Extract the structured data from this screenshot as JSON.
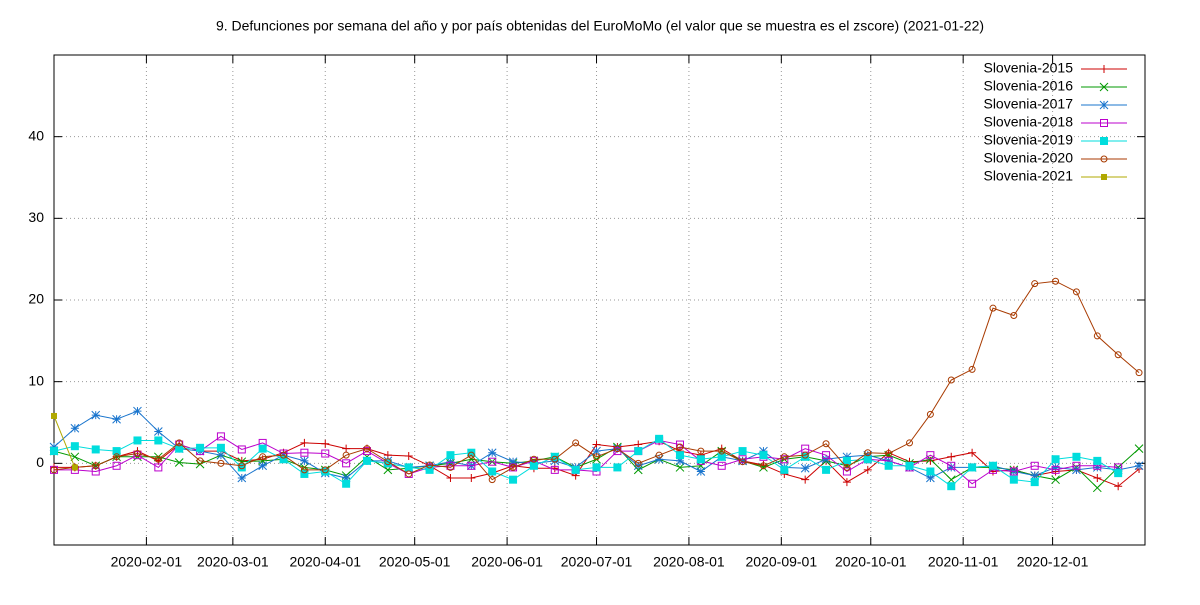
{
  "chart_data": {
    "type": "line",
    "title": "9. Defunciones por semana del año y por país obtenidas del EuroMoMo (el valor que se muestra es el zscore) (2021-01-22)",
    "x": [
      "2020-01-01",
      "2020-01-08",
      "2020-01-15",
      "2020-01-22",
      "2020-01-29",
      "2020-02-05",
      "2020-02-12",
      "2020-02-19",
      "2020-02-26",
      "2020-03-04",
      "2020-03-11",
      "2020-03-18",
      "2020-03-25",
      "2020-04-01",
      "2020-04-08",
      "2020-04-15",
      "2020-04-22",
      "2020-04-29",
      "2020-05-06",
      "2020-05-13",
      "2020-05-20",
      "2020-05-27",
      "2020-06-03",
      "2020-06-10",
      "2020-06-17",
      "2020-06-24",
      "2020-07-01",
      "2020-07-08",
      "2020-07-15",
      "2020-07-22",
      "2020-07-29",
      "2020-08-05",
      "2020-08-12",
      "2020-08-19",
      "2020-08-26",
      "2020-09-02",
      "2020-09-09",
      "2020-09-16",
      "2020-09-23",
      "2020-09-30",
      "2020-10-07",
      "2020-10-14",
      "2020-10-21",
      "2020-10-28",
      "2020-11-04",
      "2020-11-11",
      "2020-11-18",
      "2020-11-25",
      "2020-12-02",
      "2020-12-09",
      "2020-12-16",
      "2020-12-23",
      "2020-12-30"
    ],
    "xlim": [
      "2020-01-01",
      "2021-01-01"
    ],
    "xticks": [
      "2020-02-01",
      "2020-03-01",
      "2020-04-01",
      "2020-05-01",
      "2020-06-01",
      "2020-07-01",
      "2020-08-01",
      "2020-09-01",
      "2020-10-01",
      "2020-11-01",
      "2020-12-01"
    ],
    "ylim": [
      -10,
      50
    ],
    "yticks": [
      0,
      10,
      20,
      30,
      40
    ],
    "grid": true,
    "legend": "top-right",
    "series": [
      {
        "name": "Slovenia-2015",
        "color": "#cc0000",
        "marker": "plus",
        "values": [
          -0.5,
          -0.5,
          -0.3,
          0.8,
          1.5,
          0.3,
          2.3,
          1.5,
          1.5,
          0.3,
          0.5,
          1.3,
          2.5,
          2.4,
          1.8,
          1.8,
          1.0,
          0.9,
          -0.3,
          -1.8,
          -1.8,
          -1.2,
          -0.3,
          -0.6,
          -0.6,
          -1.5,
          2.3,
          2.0,
          2.3,
          2.7,
          1.5,
          1.0,
          1.8,
          0.3,
          -0.2,
          -1.3,
          -2.0,
          0.3,
          -2.3,
          -0.8,
          1.3,
          0.2,
          0.3,
          0.8,
          1.3,
          -1.0,
          -0.8,
          -1.5,
          -1.0,
          -0.8,
          -1.8,
          -2.8,
          -0.7
        ]
      },
      {
        "name": "Slovenia-2016",
        "color": "#009900",
        "marker": "cross",
        "values": [
          1.5,
          0.8,
          -0.3,
          0.8,
          0.8,
          0.8,
          0.1,
          -0.1,
          1.0,
          0.2,
          0.3,
          0.5,
          -0.5,
          -0.8,
          -1.5,
          0.8,
          -0.8,
          -0.6,
          -0.3,
          0.0,
          0.5,
          0.2,
          0.0,
          0.3,
          0.8,
          -0.5,
          0.5,
          2.0,
          -0.8,
          0.5,
          -0.5,
          -0.3,
          1.5,
          0.3,
          -0.5,
          0.5,
          0.8,
          0.3,
          -0.3,
          0.8,
          1.0,
          0.0,
          0.5,
          -2.0,
          -0.5,
          -0.5,
          -0.8,
          -1.5,
          -2.0,
          -0.5,
          -3.0,
          -0.5,
          1.8
        ]
      },
      {
        "name": "Slovenia-2017",
        "color": "#1874cd",
        "marker": "star",
        "values": [
          2.0,
          4.3,
          5.9,
          5.4,
          6.4,
          3.9,
          1.8,
          1.5,
          1.0,
          -1.8,
          -0.3,
          1.0,
          0.3,
          -1.2,
          -1.8,
          0.3,
          0.3,
          -0.5,
          -0.3,
          0.2,
          -0.3,
          1.3,
          0.2,
          0.0,
          0.3,
          -0.5,
          1.5,
          1.8,
          -0.3,
          0.5,
          0.3,
          -1.0,
          0.8,
          0.3,
          1.5,
          -0.5,
          -0.6,
          0.5,
          0.8,
          1.0,
          0.3,
          -0.5,
          -1.8,
          -0.5,
          -0.5,
          -0.3,
          -1.0,
          -1.5,
          -0.5,
          -0.8,
          -0.5,
          -0.8,
          -0.3
        ]
      },
      {
        "name": "Slovenia-2018",
        "color": "#bb00cc",
        "marker": "square",
        "values": [
          -0.8,
          -0.8,
          -1.0,
          -0.3,
          1.0,
          -0.5,
          2.3,
          1.5,
          3.3,
          1.7,
          2.5,
          1.2,
          1.3,
          1.2,
          0.0,
          1.5,
          0.0,
          -1.3,
          -0.5,
          -0.3,
          -0.3,
          0.2,
          -0.5,
          0.3,
          -0.8,
          -0.8,
          -1.0,
          1.5,
          1.5,
          2.8,
          2.3,
          0.3,
          -0.3,
          0.5,
          0.8,
          0.5,
          1.8,
          1.0,
          -1.0,
          0.5,
          0.3,
          -0.5,
          1.0,
          -0.3,
          -2.5,
          -0.8,
          -1.0,
          -0.3,
          -0.8,
          -0.3,
          -0.3,
          -0.5,
          null
        ]
      },
      {
        "name": "Slovenia-2019",
        "color": "#00dddd",
        "marker": "filled-square",
        "values": [
          1.5,
          2.1,
          1.7,
          1.5,
          2.8,
          2.8,
          1.8,
          1.9,
          1.9,
          -0.5,
          1.8,
          0.5,
          -1.3,
          -1.0,
          -2.5,
          0.3,
          0.0,
          -0.5,
          -0.8,
          1.0,
          1.3,
          -1.0,
          -2.0,
          -0.3,
          0.8,
          -0.8,
          -0.5,
          -0.5,
          1.5,
          3.0,
          1.0,
          0.5,
          0.8,
          1.5,
          1.0,
          -0.8,
          0.8,
          -0.8,
          0.3,
          0.5,
          -0.3,
          -0.3,
          -1.0,
          -2.8,
          -0.5,
          -0.3,
          -2.0,
          -2.3,
          0.5,
          0.8,
          0.3,
          -1.2,
          null
        ]
      },
      {
        "name": "Slovenia-2020",
        "color": "#a83a00",
        "marker": "circle",
        "values": [
          -0.8,
          -0.5,
          -0.3,
          0.8,
          1.2,
          0.5,
          2.5,
          0.3,
          0,
          -0.3,
          0.8,
          1.0,
          -0.8,
          -0.8,
          1.0,
          1.8,
          0.2,
          -1.3,
          -0.2,
          -0.5,
          1.0,
          -2.0,
          -0.5,
          0.5,
          0.5,
          2.5,
          0.8,
          1.8,
          0,
          1.0,
          2.0,
          1.5,
          1.5,
          0.2,
          -0.3,
          0.8,
          1.0,
          2.4,
          -0.5,
          1.3,
          1.2,
          2.5,
          6.0,
          10.2,
          11.5,
          19.0,
          18.1,
          22.0,
          22.3,
          21.0,
          15.6,
          13.3,
          11.1
        ]
      },
      {
        "name": "Slovenia-2021",
        "color": "#b0a800",
        "marker": "small-square",
        "values": [
          5.8,
          -0.5,
          null,
          null,
          null,
          null,
          null,
          null,
          null,
          null,
          null,
          null,
          null,
          null,
          null,
          null,
          null,
          null,
          null,
          null,
          null,
          null,
          null,
          null,
          null,
          null,
          null,
          null,
          null,
          null,
          null,
          null,
          null,
          null,
          null,
          null,
          null,
          null,
          null,
          null,
          null,
          null,
          null,
          null,
          null,
          null,
          null,
          null,
          null,
          null,
          null,
          null,
          null
        ]
      }
    ]
  }
}
